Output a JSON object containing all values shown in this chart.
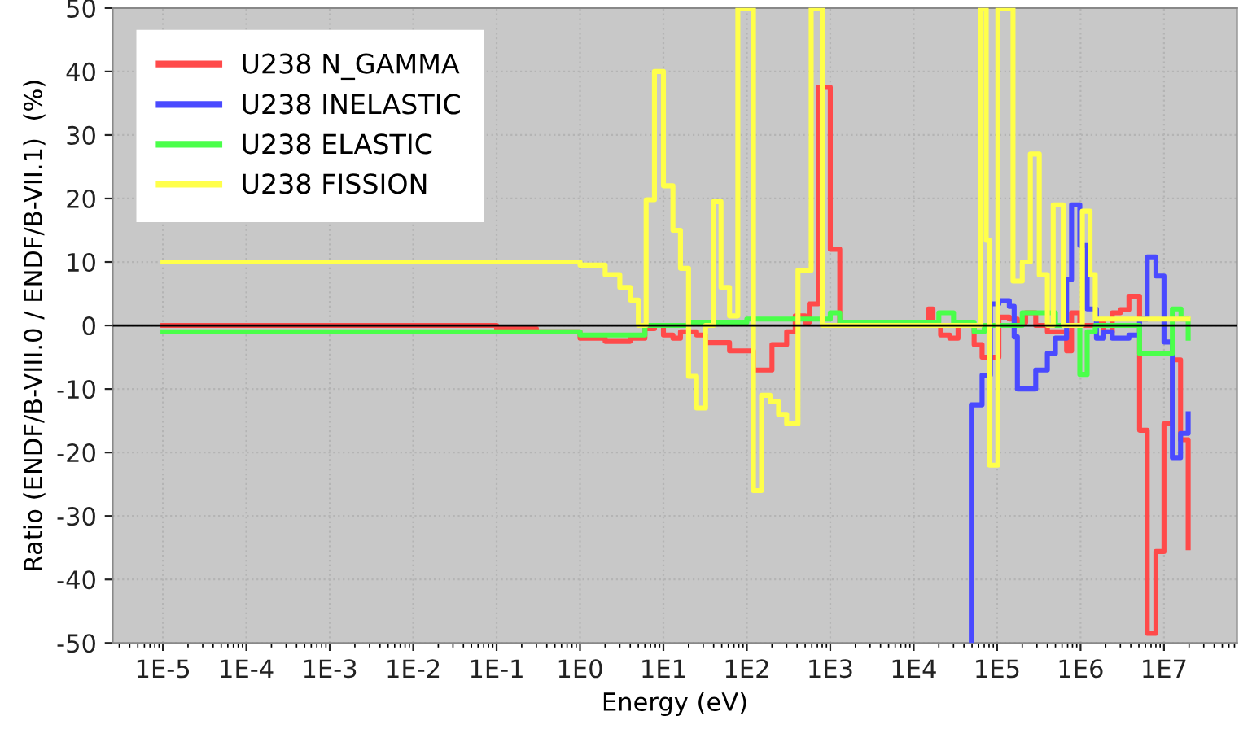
{
  "chart_data": {
    "type": "step",
    "xlabel": "Energy (eV)",
    "ylabel": "Ratio (ENDF/B-VIII.0 / ENDF/B-VII.1)  (%)",
    "log": "x",
    "xlim": [
      2.5e-06,
      75000000.0
    ],
    "ylim": [
      -50,
      50
    ],
    "xticks": [
      {
        "value": 1e-05,
        "label": "1E-5"
      },
      {
        "value": 0.0001,
        "label": "1E-4"
      },
      {
        "value": 0.001,
        "label": "1E-3"
      },
      {
        "value": 0.01,
        "label": "1E-2"
      },
      {
        "value": 0.1,
        "label": "1E-1"
      },
      {
        "value": 1,
        "label": "1E0"
      },
      {
        "value": 10,
        "label": "1E1"
      },
      {
        "value": 100,
        "label": "1E2"
      },
      {
        "value": 1000,
        "label": "1E3"
      },
      {
        "value": 10000,
        "label": "1E4"
      },
      {
        "value": 100000,
        "label": "1E5"
      },
      {
        "value": 1000000,
        "label": "1E6"
      },
      {
        "value": 10000000,
        "label": "1E7"
      }
    ],
    "yticks": [
      -50,
      -40,
      -30,
      -20,
      -10,
      0,
      10,
      20,
      30,
      40,
      50
    ],
    "grid": true,
    "legend": "top left",
    "marker": "none",
    "line_style": "solid",
    "ref_lines": [
      {
        "axis": "y",
        "value": 0,
        "color": "#000000"
      }
    ],
    "series": [
      {
        "name": "U238 N_GAMMA",
        "color": "#ff4a4a",
        "x": [
          1e-05,
          0.1,
          0.3,
          1,
          2,
          4,
          6,
          7.8,
          10,
          13,
          16,
          25,
          32,
          62,
          120,
          200,
          300,
          380,
          500,
          560,
          720,
          1000,
          1300,
          15000,
          17000,
          21000,
          27000,
          34000,
          53000,
          66000,
          83000,
          105000,
          140000,
          175000,
          220000,
          290000,
          400000,
          500000,
          680000,
          780000,
          980000,
          1550000,
          1900000,
          2400000,
          3000000,
          3800000,
          5100000,
          6300000,
          8000000,
          10000000,
          12600000,
          15800000,
          19500000,
          19500000
        ],
        "values": [
          0,
          -0.5,
          -1,
          -2,
          -2.5,
          -2,
          -0.5,
          0,
          -1.5,
          -2,
          -1,
          -1.5,
          -2.7,
          -4,
          -7,
          -3,
          -1,
          1.5,
          0.5,
          3.4,
          37.5,
          12,
          0,
          2.6,
          0,
          -1.5,
          -2,
          0,
          -3,
          -5,
          -5,
          1.3,
          1,
          0.5,
          2,
          0,
          -1,
          -1,
          -4,
          2,
          0,
          0.5,
          -1,
          2,
          2.5,
          4.6,
          -16.5,
          -48.5,
          -35.6,
          -15.5,
          -5.4,
          -18,
          -18,
          -35
        ]
      },
      {
        "name": "U238 INELASTIC",
        "color": "#4a4aff",
        "x": [
          49000,
          49000,
          66000,
          83000,
          105000,
          140000,
          160000,
          175000,
          290000,
          400000,
          500000,
          680000,
          780000,
          980000,
          1200000,
          1550000,
          1900000,
          2400000,
          3000000,
          3800000,
          5100000,
          6300000,
          8000000,
          10000000,
          12600000,
          15800000,
          19500000,
          19500000
        ],
        "values": [
          -50,
          -12.5,
          -7.8,
          3.4,
          3.9,
          3,
          -1.8,
          -10,
          -7,
          -4.4,
          -2,
          7.2,
          19,
          12.6,
          2.6,
          -2,
          -1,
          -2,
          -2,
          -1.5,
          1,
          10.8,
          7.8,
          -2.6,
          -20.8,
          -17,
          -17,
          -13.9
        ]
      },
      {
        "name": "U238 ELASTIC",
        "color": "#4aff4a",
        "x": [
          1e-05,
          0.3,
          1,
          3,
          6,
          20,
          100,
          300,
          1000,
          1300,
          20000,
          30000,
          53000,
          70000,
          200000,
          300000,
          500000,
          980000,
          1200000,
          1500000,
          5100000,
          12600000,
          16000000,
          19500000,
          19500000
        ],
        "values": [
          -1,
          -1,
          -1.5,
          -1.5,
          0,
          0.5,
          1,
          1,
          2,
          0.5,
          2,
          0.5,
          -1,
          0,
          2,
          2,
          0,
          -7.7,
          -1,
          0,
          -4.4,
          2.6,
          1,
          -2,
          -2
        ]
      },
      {
        "name": "U238 FISSION",
        "color": "#ffff4a",
        "x": [
          1e-05,
          0.3,
          1,
          2,
          3,
          4,
          5,
          6.2,
          7.8,
          10,
          13,
          16,
          20,
          25,
          32,
          40,
          49,
          62,
          78,
          120,
          150,
          190,
          240,
          300,
          410,
          590,
          800,
          63000,
          74000,
          81000,
          102000,
          155000,
          200000,
          250000,
          320000,
          400000,
          470000,
          620000,
          1050000,
          1300000,
          1500000,
          19500000
        ],
        "values": [
          10,
          10,
          9.5,
          8,
          6,
          4,
          0,
          19.8,
          40,
          22,
          15,
          9,
          -8,
          -13,
          0,
          19.5,
          6,
          1.5,
          50,
          -26,
          -11,
          -12,
          -14,
          -15.5,
          8.7,
          50,
          0,
          50,
          13.4,
          -22,
          50,
          7,
          10,
          27,
          8,
          0,
          19,
          0,
          18,
          8,
          1,
          1
        ]
      }
    ]
  }
}
